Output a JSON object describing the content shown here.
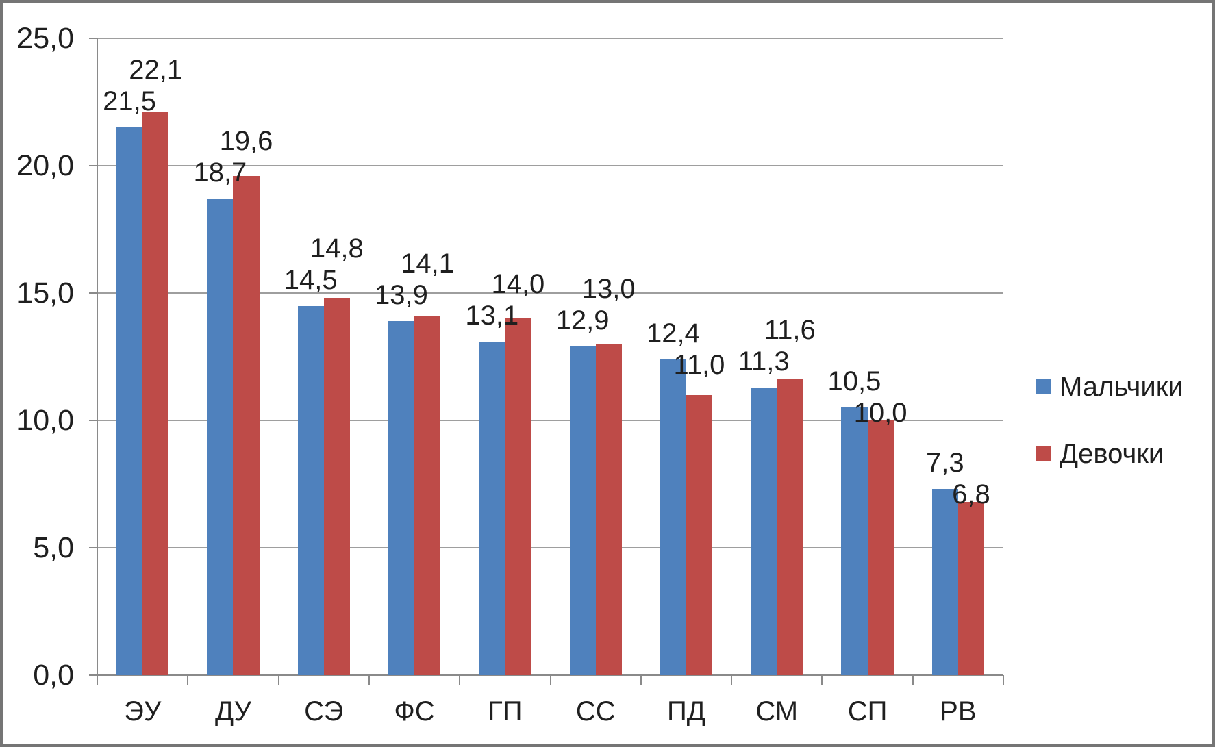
{
  "chart_data": {
    "type": "bar",
    "title": "",
    "xlabel": "",
    "ylabel": "",
    "categories": [
      "ЭУ",
      "ДУ",
      "СЭ",
      "ФС",
      "ГП",
      "СС",
      "ПД",
      "СМ",
      "СП",
      "РВ"
    ],
    "series": [
      {
        "name": "Мальчики",
        "color": "#4F81BD",
        "values": [
          21.5,
          18.7,
          14.5,
          13.9,
          13.1,
          12.9,
          12.4,
          11.3,
          10.5,
          7.3
        ],
        "labels": [
          "21,5",
          "18,7",
          "14,5",
          "13,9",
          "13,1",
          "12,9",
          "12,4",
          "11,3",
          "10,5",
          "7,3"
        ]
      },
      {
        "name": "Девочки",
        "color": "#BE4B48",
        "values": [
          22.1,
          19.6,
          14.8,
          14.1,
          14.0,
          13.0,
          11.0,
          11.6,
          10.0,
          6.8
        ],
        "labels": [
          "22,1",
          "19,6",
          "14,8",
          "14,1",
          "14,0",
          "13,0",
          "11,0",
          "11,6",
          "10,0",
          "6,8"
        ]
      }
    ],
    "ylim": [
      0,
      25
    ],
    "yticks": [
      0,
      5,
      10,
      15,
      20,
      25
    ],
    "ytick_labels": [
      "0,0",
      "5,0",
      "10,0",
      "15,0",
      "20,0",
      "25,0"
    ],
    "decimal_separator": ",",
    "grid": true,
    "legend_position": "right"
  },
  "legend": {
    "items": [
      {
        "label": "Мальчики",
        "color": "#4F81BD"
      },
      {
        "label": "Девочки",
        "color": "#BE4B48"
      }
    ]
  },
  "colors": {
    "series_boys": "#4F81BD",
    "series_girls": "#BE4B48",
    "gridline": "#9e9e9e",
    "axis": "#8a8a8a",
    "text": "#1f1f1f",
    "background": "#ffffff",
    "border": "#757575"
  }
}
